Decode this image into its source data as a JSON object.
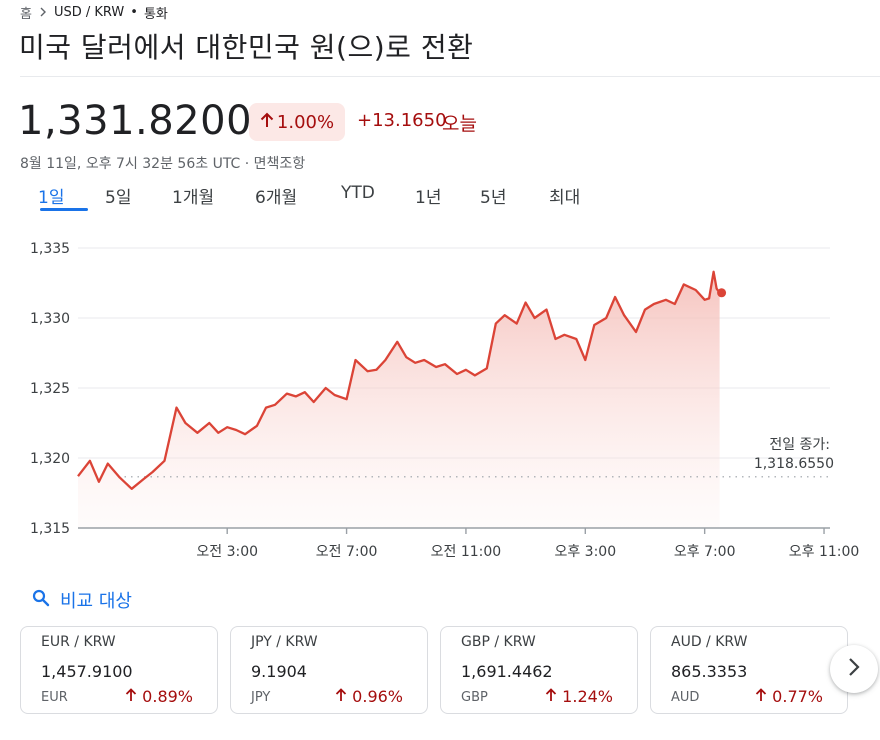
{
  "breadcrumb": {
    "home": "홈",
    "pair": "USD / KRW",
    "dot": "•",
    "category": "통화"
  },
  "title": "미국 달러에서 대한민국 원(으)로 전환",
  "quote": {
    "price": "1,331.8200",
    "change_pct": "1.00%",
    "change_abs": "+13.1650",
    "today": "오늘",
    "timestamp": "8월 11일, 오후 7시 32분 56초 UTC · 면책조항"
  },
  "tabs": [
    "1일",
    "5일",
    "1개월",
    "6개월",
    "YTD",
    "1년",
    "5년",
    "최대"
  ],
  "active_tab": "1일",
  "chart_data": {
    "type": "area",
    "y_ticks": [
      "1,335",
      "1,330",
      "1,325",
      "1,320",
      "1,315"
    ],
    "ylim": [
      1315,
      1335
    ],
    "x_ticks": [
      "오전 3:00",
      "오전 7:00",
      "오전 11:00",
      "오후 3:00",
      "오후 7:00",
      "오후 11:00"
    ],
    "x_hours_range": [
      -2,
      23.2
    ],
    "series": [
      {
        "x": [
          -2,
          -1.6,
          -1.3,
          -1,
          -0.6,
          -0.2,
          0.2,
          0.5,
          0.9,
          1.3,
          1.6,
          2.0,
          2.4,
          2.7,
          3.0,
          3.3,
          3.6,
          4.0,
          4.3,
          4.6,
          5.0,
          5.3,
          5.6,
          5.9,
          6.3,
          6.6,
          7.0,
          7.3,
          7.7,
          8.0,
          8.3,
          8.7,
          9.0,
          9.3,
          9.6,
          10.0,
          10.3,
          10.7,
          11.0,
          11.3,
          11.7,
          12.0,
          12.3,
          12.7,
          13.0,
          13.3,
          13.7,
          14.0,
          14.3,
          14.7,
          15.0,
          15.3,
          15.7,
          16.0,
          16.3,
          16.7,
          17.0,
          17.3,
          17.7,
          18.0,
          18.3,
          18.7,
          19.0,
          19.15,
          19.3,
          19.4,
          19.5
        ],
        "y": [
          1318.7,
          1319.8,
          1318.3,
          1319.6,
          1318.6,
          1317.8,
          1318.5,
          1319.0,
          1319.8,
          1323.6,
          1322.5,
          1321.8,
          1322.5,
          1321.8,
          1322.2,
          1322.0,
          1321.7,
          1322.3,
          1323.6,
          1323.8,
          1324.6,
          1324.4,
          1324.7,
          1324.0,
          1325.0,
          1324.5,
          1324.2,
          1327.0,
          1326.2,
          1326.3,
          1327.0,
          1328.3,
          1327.2,
          1326.8,
          1327.0,
          1326.5,
          1326.7,
          1326.0,
          1326.3,
          1325.9,
          1326.4,
          1329.6,
          1330.2,
          1329.6,
          1331.1,
          1330.0,
          1330.6,
          1328.5,
          1328.8,
          1328.5,
          1327.0,
          1329.5,
          1330.0,
          1331.5,
          1330.2,
          1329.0,
          1330.6,
          1331.0,
          1331.3,
          1331.0,
          1332.4,
          1332.0,
          1331.3,
          1331.4,
          1333.3,
          1332.1,
          1331.8
        ]
      }
    ],
    "previous_close_label": "전일 종가:",
    "previous_close_value": "1,318.6550",
    "previous_close": 1318.655,
    "grid": true,
    "colors": {
      "line": "#db4437",
      "fill_top": "#f4b9b3",
      "dotted": "#9aa0a6"
    }
  },
  "compare": {
    "label": "비교 대상"
  },
  "cards": [
    {
      "pair": "EUR / KRW",
      "rate": "1,457.9100",
      "code": "EUR",
      "pct": "0.89%"
    },
    {
      "pair": "JPY / KRW",
      "rate": "9.1904",
      "code": "JPY",
      "pct": "0.96%"
    },
    {
      "pair": "GBP / KRW",
      "rate": "1,691.4462",
      "code": "GBP",
      "pct": "1.24%"
    },
    {
      "pair": "AUD / KRW",
      "rate": "865.3353",
      "code": "AUD",
      "pct": "0.77%"
    }
  ],
  "colors": {
    "accent": "#1a73e8",
    "negative_text": "#a50e0e",
    "positive_bg": "#fce8e6"
  }
}
